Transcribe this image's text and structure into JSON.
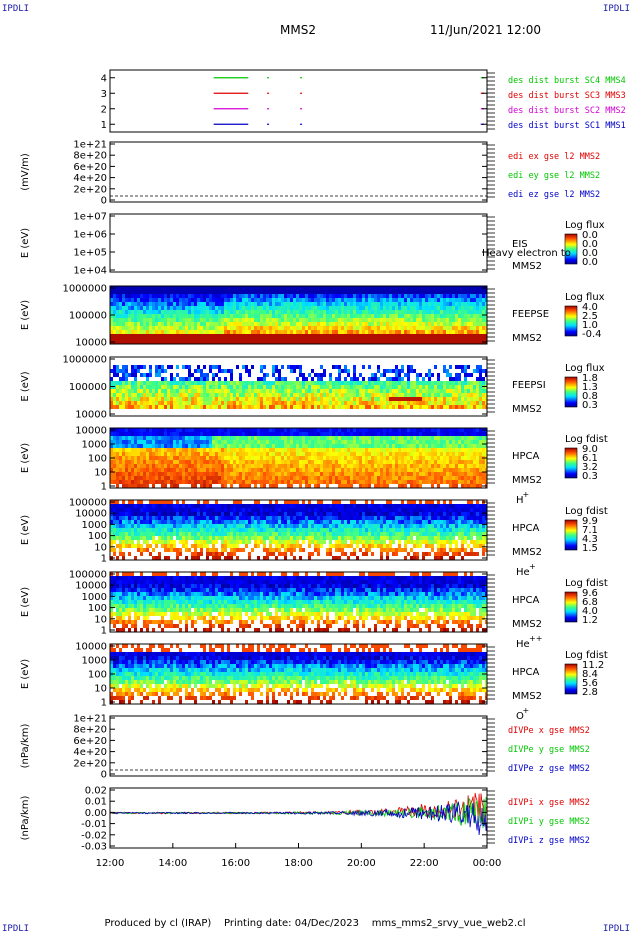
{
  "header": {
    "title": "MMS2",
    "datetime": "11/Jun/2021 12:00",
    "corner_label": "IPDLI"
  },
  "footer": {
    "text": "Produced by cl (IRAP)    Printing date: 04/Dec/2023    mms_mms2_srvy_vue_web2.cl"
  },
  "colors": {
    "mms1": "#0000c8",
    "mms2": "#d400d4",
    "mms3": "#e00000",
    "mms4": "#00c800",
    "x_component": "#e00000",
    "y_component": "#00c800",
    "z_component": "#0000c8",
    "corner": "#1a1aa8"
  },
  "x_axis": {
    "tick_labels": [
      "12:00",
      "14:00",
      "16:00",
      "18:00",
      "20:00",
      "22:00",
      "00:00"
    ],
    "range_hours": [
      12,
      24
    ]
  },
  "chart_data": [
    {
      "type": "line",
      "panel": "burst-intervals",
      "y_ticks": [
        "1",
        "2",
        "3",
        "4"
      ],
      "ylim": [
        0.5,
        4.5
      ],
      "series": [
        {
          "name": "des dist burst SC1 MMS1",
          "level": 1,
          "color": "#0000c8",
          "segments": [
            [
              15.3,
              16.4
            ],
            [
              17.0,
              17.05
            ],
            [
              18.05,
              18.1
            ],
            [
              23.8,
              23.9
            ]
          ]
        },
        {
          "name": "des dist burst SC2 MMS2",
          "level": 2,
          "color": "#d400d4",
          "segments": [
            [
              15.3,
              16.4
            ],
            [
              17.0,
              17.05
            ],
            [
              18.05,
              18.1
            ],
            [
              23.8,
              23.9
            ]
          ]
        },
        {
          "name": "des dist burst SC3 MMS3",
          "level": 3,
          "color": "#e00000",
          "segments": [
            [
              15.3,
              16.4
            ],
            [
              17.0,
              17.05
            ],
            [
              18.05,
              18.1
            ],
            [
              23.8,
              23.9
            ]
          ]
        },
        {
          "name": "des dist burst SC4 MMS4",
          "level": 4,
          "color": "#00c800",
          "segments": [
            [
              15.3,
              16.4
            ],
            [
              17.0,
              17.05
            ],
            [
              18.05,
              18.1
            ],
            [
              23.8,
              23.9
            ]
          ]
        }
      ]
    },
    {
      "type": "line",
      "panel": "electric-field",
      "ylabel": "(mV/m)",
      "y_ticks": [
        "1e+21",
        "8e+20",
        "6e+20",
        "4e+20",
        "2e+20",
        "0"
      ],
      "series": [
        {
          "name": "edi ex gse l2 MMS2",
          "color": "#e00000"
        },
        {
          "name": "edi ey gse l2 MMS2",
          "color": "#00c800"
        },
        {
          "name": "edi ez gse l2 MMS2",
          "color": "#0000c8"
        }
      ]
    },
    {
      "type": "heatmap",
      "panel": "eis",
      "ylabel": "E (eV)",
      "y_ticks": [
        "1e+07",
        "1e+06",
        "1e+05",
        "1e+04"
      ],
      "instrument": "EIS",
      "spacecraft": "MMS2",
      "overlay_text": "Heavy electron to",
      "colorbar_title": "Log flux",
      "colorbar_ticks": [
        "0.0",
        "0.0",
        "0.0",
        "0.0"
      ]
    },
    {
      "type": "heatmap",
      "panel": "feeps-electrons",
      "ylabel": "E (eV)",
      "y_ticks": [
        "1000000",
        "100000",
        "10000"
      ],
      "instrument": "FEEPSE",
      "spacecraft": "MMS2",
      "colorbar_title": "Log flux",
      "colorbar_ticks": [
        "4.0",
        "2.5",
        "1.0",
        "-0.4"
      ]
    },
    {
      "type": "heatmap",
      "panel": "feeps-ions",
      "ylabel": "E (eV)",
      "y_ticks": [
        "1000000",
        "100000",
        "10000"
      ],
      "instrument": "FEEPSI",
      "spacecraft": "MMS2",
      "colorbar_title": "Log flux",
      "colorbar_ticks": [
        "1.8",
        "1.3",
        "0.8",
        "0.3"
      ]
    },
    {
      "type": "heatmap",
      "panel": "hpca-hplus",
      "ylabel": "E (eV)",
      "y_ticks": [
        "10000",
        "1000",
        "100",
        "10",
        "1"
      ],
      "instrument": "HPCA",
      "spacecraft": "MMS2",
      "species": "H",
      "species_charge": "+",
      "colorbar_title": "Log fdist",
      "colorbar_ticks": [
        "9.0",
        "6.1",
        "3.2",
        "0.3"
      ]
    },
    {
      "type": "heatmap",
      "panel": "hpca-heplus",
      "ylabel": "E (eV)",
      "y_ticks": [
        "100000",
        "10000",
        "1000",
        "100",
        "10",
        "1"
      ],
      "instrument": "HPCA",
      "spacecraft": "MMS2",
      "species": "He",
      "species_charge": "+",
      "colorbar_title": "Log fdist",
      "colorbar_ticks": [
        "9.9",
        "7.1",
        "4.3",
        "1.5"
      ]
    },
    {
      "type": "heatmap",
      "panel": "hpca-heplusplus",
      "ylabel": "E (eV)",
      "y_ticks": [
        "100000",
        "10000",
        "1000",
        "100",
        "10",
        "1"
      ],
      "instrument": "HPCA",
      "spacecraft": "MMS2",
      "species": "He",
      "species_charge": "++",
      "colorbar_title": "Log fdist",
      "colorbar_ticks": [
        "9.6",
        "6.8",
        "4.0",
        "1.2"
      ]
    },
    {
      "type": "heatmap",
      "panel": "hpca-oplus",
      "ylabel": "E (eV)",
      "y_ticks": [
        "10000",
        "1000",
        "100",
        "10",
        "1"
      ],
      "instrument": "HPCA",
      "spacecraft": "MMS2",
      "species": "O",
      "species_charge": "+",
      "colorbar_title": "Log fdist",
      "colorbar_ticks": [
        "11.2",
        "8.4",
        "5.6",
        "2.8"
      ]
    },
    {
      "type": "line",
      "panel": "electron-pressure-gradient",
      "ylabel": "(nPa/km)",
      "y_ticks": [
        "1e+21",
        "8e+20",
        "6e+20",
        "4e+20",
        "2e+20",
        "0"
      ],
      "series": [
        {
          "name": "dIVPe x gse MMS2",
          "color": "#e00000"
        },
        {
          "name": "dIVPe y gse MMS2",
          "color": "#00c800"
        },
        {
          "name": "dIVPe z gse MMS2",
          "color": "#0000c8"
        }
      ]
    },
    {
      "type": "line",
      "panel": "ion-pressure-gradient",
      "ylabel": "(nPa/km)",
      "y_ticks": [
        "0.02",
        "0.01",
        "0.00",
        "-0.01",
        "-0.02",
        "-0.03"
      ],
      "ylim": [
        -0.035,
        0.025
      ],
      "series": [
        {
          "name": "dIVPi x gse MMS2",
          "color": "#e00000"
        },
        {
          "name": "dIVPi y gse MMS2",
          "color": "#00c800"
        },
        {
          "name": "dIVPi z gse MMS2",
          "color": "#0000c8"
        }
      ]
    }
  ]
}
